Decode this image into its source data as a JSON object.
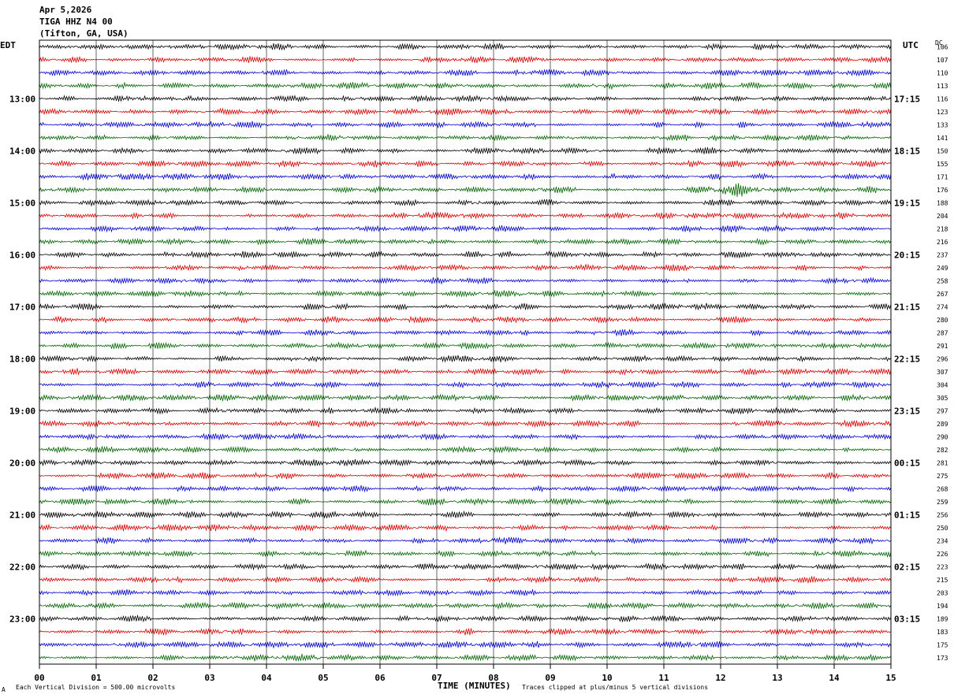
{
  "header": {
    "date": "Apr 5,2026",
    "station": "TIGA HHZ N4 00",
    "location": "(Tifton, GA, USA)"
  },
  "left_axis_label": "EDT",
  "right_axis_label": "UTC",
  "dc_label": "DC",
  "footer": {
    "scale": "Each Vertical Division =  500.00 microvolts",
    "clip": "Traces clipped at plus/minus 5 vertical divisions",
    "mark": "A"
  },
  "chart_data": {
    "type": "line",
    "title": "TIGA HHZ N4 00",
    "xlabel": "TIME (MINUTES)",
    "xlim": [
      0,
      15
    ],
    "x_ticks": [
      "00",
      "01",
      "02",
      "03",
      "04",
      "05",
      "06",
      "07",
      "08",
      "09",
      "10",
      "11",
      "12",
      "13",
      "14",
      "15"
    ],
    "minutes_per_row": 15,
    "row_colors": [
      "#000000",
      "#d40000",
      "#0000cc",
      "#006400"
    ],
    "left_time_labels": [
      {
        "row": 4,
        "label": "13:00"
      },
      {
        "row": 8,
        "label": "14:00"
      },
      {
        "row": 12,
        "label": "15:00"
      },
      {
        "row": 16,
        "label": "16:00"
      },
      {
        "row": 20,
        "label": "17:00"
      },
      {
        "row": 24,
        "label": "18:00"
      },
      {
        "row": 28,
        "label": "19:00"
      },
      {
        "row": 32,
        "label": "20:00"
      },
      {
        "row": 36,
        "label": "21:00"
      },
      {
        "row": 40,
        "label": "22:00"
      },
      {
        "row": 44,
        "label": "23:00"
      }
    ],
    "right_time_labels": [
      {
        "row": 4,
        "label": "17:15"
      },
      {
        "row": 8,
        "label": "18:15"
      },
      {
        "row": 12,
        "label": "19:15"
      },
      {
        "row": 16,
        "label": "20:15"
      },
      {
        "row": 20,
        "label": "21:15"
      },
      {
        "row": 24,
        "label": "22:15"
      },
      {
        "row": 28,
        "label": "23:15"
      },
      {
        "row": 32,
        "label": "00:15"
      },
      {
        "row": 36,
        "label": "01:15"
      },
      {
        "row": 40,
        "label": "02:15"
      },
      {
        "row": 44,
        "label": "03:15"
      }
    ],
    "dc_offsets": [
      106,
      107,
      110,
      113,
      116,
      123,
      133,
      141,
      150,
      155,
      171,
      176,
      188,
      204,
      218,
      216,
      237,
      249,
      258,
      267,
      274,
      280,
      287,
      291,
      296,
      307,
      304,
      305,
      297,
      289,
      290,
      282,
      281,
      275,
      268,
      259,
      256,
      250,
      234,
      226,
      223,
      215,
      203,
      194,
      189,
      183,
      175,
      173
    ],
    "events": [
      {
        "row": 11,
        "start_min": 11.7,
        "end_min": 12.9,
        "amplitude": "high"
      }
    ],
    "grid": true
  }
}
